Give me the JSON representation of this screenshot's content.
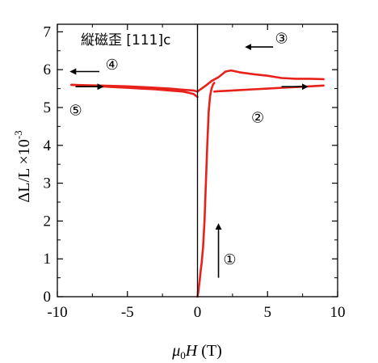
{
  "chart_data": {
    "type": "line",
    "title": "縦磁歪 [111]c",
    "xlabel": "μ0H (T)",
    "ylabel": "ΔL/L ×10^-3",
    "xlabel_parts": {
      "mu": "μ",
      "sub": "0",
      "h": "H",
      "unit": " (T)"
    },
    "ylabel_parts": {
      "main": "ΔL/L ×10",
      "exp": "-3"
    },
    "xlim": [
      -10,
      10
    ],
    "ylim": [
      0,
      7.2
    ],
    "x_ticks": [
      -10,
      -5,
      0,
      5,
      10
    ],
    "x_tick_labels": [
      "-10",
      "-5",
      "0",
      "5",
      "10"
    ],
    "y_ticks": [
      0,
      1,
      2,
      3,
      4,
      5,
      6,
      7
    ],
    "y_tick_labels": [
      "0",
      "1",
      "2",
      "3",
      "4",
      "5",
      "6",
      "7"
    ],
    "grid": false,
    "series_color": "#e8211b",
    "series": [
      {
        "x": [
          0,
          0.05,
          0.1,
          0.15,
          0.2,
          0.3,
          0.4,
          0.5,
          0.6,
          0.7,
          0.8,
          0.9,
          1.0,
          1.1,
          1.2
        ],
        "y": [
          0,
          0.1,
          0.25,
          0.4,
          0.6,
          0.9,
          1.3,
          2.0,
          3.0,
          4.0,
          4.9,
          5.3,
          5.5,
          5.6,
          5.65
        ]
      },
      {
        "x": [
          1.2,
          1.5,
          2,
          3,
          4,
          5,
          6,
          7,
          8,
          9
        ],
        "y": [
          5.42,
          5.43,
          5.44,
          5.46,
          5.48,
          5.5,
          5.52,
          5.54,
          5.56,
          5.58
        ]
      },
      {
        "x": [
          9,
          8,
          7,
          6,
          5,
          4,
          3,
          2.4,
          2,
          1.5,
          1.0,
          0.6,
          0.3,
          0.1,
          0
        ],
        "y": [
          5.75,
          5.76,
          5.76,
          5.78,
          5.84,
          5.88,
          5.93,
          5.98,
          5.95,
          5.8,
          5.7,
          5.58,
          5.5,
          5.45,
          5.42
        ]
      },
      {
        "x": [
          0,
          -0.3,
          -1,
          -2,
          -3,
          -4,
          -5,
          -6,
          -7,
          -8,
          -9
        ],
        "y": [
          5.42,
          5.45,
          5.47,
          5.5,
          5.52,
          5.54,
          5.56,
          5.57,
          5.58,
          5.59,
          5.6
        ]
      },
      {
        "x": [
          -9,
          -8,
          -7,
          -6,
          -5,
          -4,
          -3,
          -2,
          -1,
          -0.3,
          0
        ],
        "y": [
          5.6,
          5.58,
          5.56,
          5.54,
          5.52,
          5.5,
          5.48,
          5.45,
          5.42,
          5.36,
          5.28
        ]
      }
    ],
    "annotations": [
      {
        "label": "①",
        "x": 2.3,
        "y": 0.85,
        "arrow": "up",
        "ax": 1.5,
        "ay": 0.5,
        "ay2": 1.9
      },
      {
        "label": "②",
        "x": 4.3,
        "y": 4.6,
        "arrow": "right",
        "ax": 6.0,
        "ay": 5.55,
        "ax2": 7.8
      },
      {
        "label": "③",
        "x": 6.0,
        "y": 6.7,
        "arrow": "left",
        "ax": 5.4,
        "ay": 6.6,
        "ax2": 3.5
      },
      {
        "label": "④",
        "x": -6.1,
        "y": 6.0,
        "arrow": "left",
        "ax": -7.0,
        "ay": 5.95,
        "ax2": -9.0
      },
      {
        "label": "⑤",
        "x": -8.7,
        "y": 4.8,
        "arrow": "right",
        "ax": -8.7,
        "ay": 5.55,
        "ax2": -6.8
      }
    ]
  }
}
